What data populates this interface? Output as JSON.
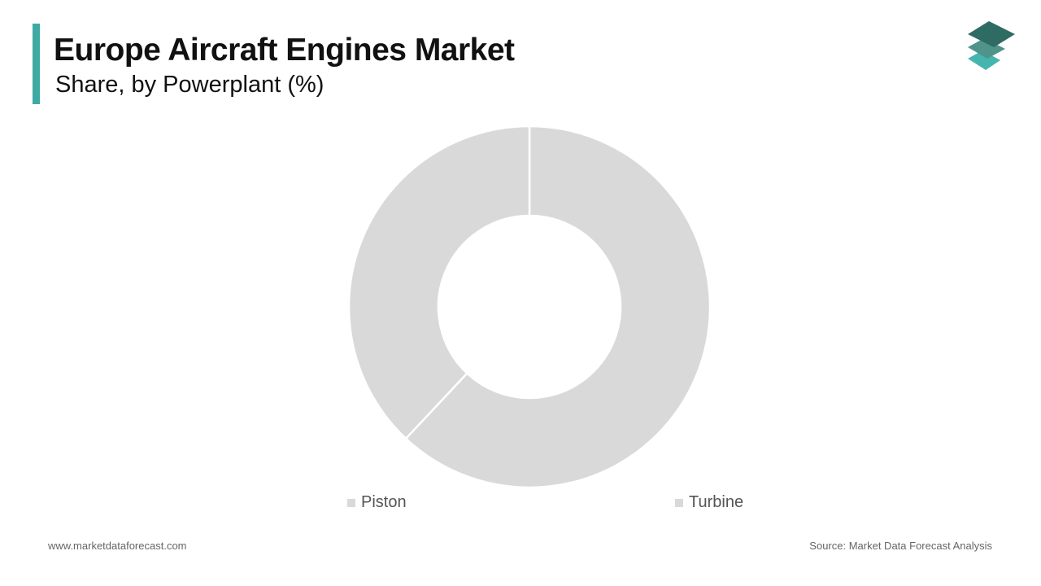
{
  "header": {
    "title": "Europe Aircraft Engines Market",
    "subtitle": "Share, by Powerplant (%)",
    "accent_color": "#3fa9a3"
  },
  "logo": {
    "icon": "stacked-layers-logo",
    "colors": [
      "#2e6b62",
      "#4f938a",
      "#45b5b0"
    ]
  },
  "chart_data": {
    "type": "pie",
    "donut": true,
    "title": "Europe Aircraft Engines Market",
    "subtitle": "Share, by Powerplant (%)",
    "categories": [
      "Piston",
      "Turbine"
    ],
    "values": [
      62,
      38
    ],
    "colors": [
      "#d9d9d9",
      "#d9d9d9"
    ],
    "start_angle": "top, clockwise",
    "legend": "bottom"
  },
  "footer": {
    "website": "www.marketdataforecast.com",
    "source": "Source: Market Data Forecast Analysis"
  }
}
